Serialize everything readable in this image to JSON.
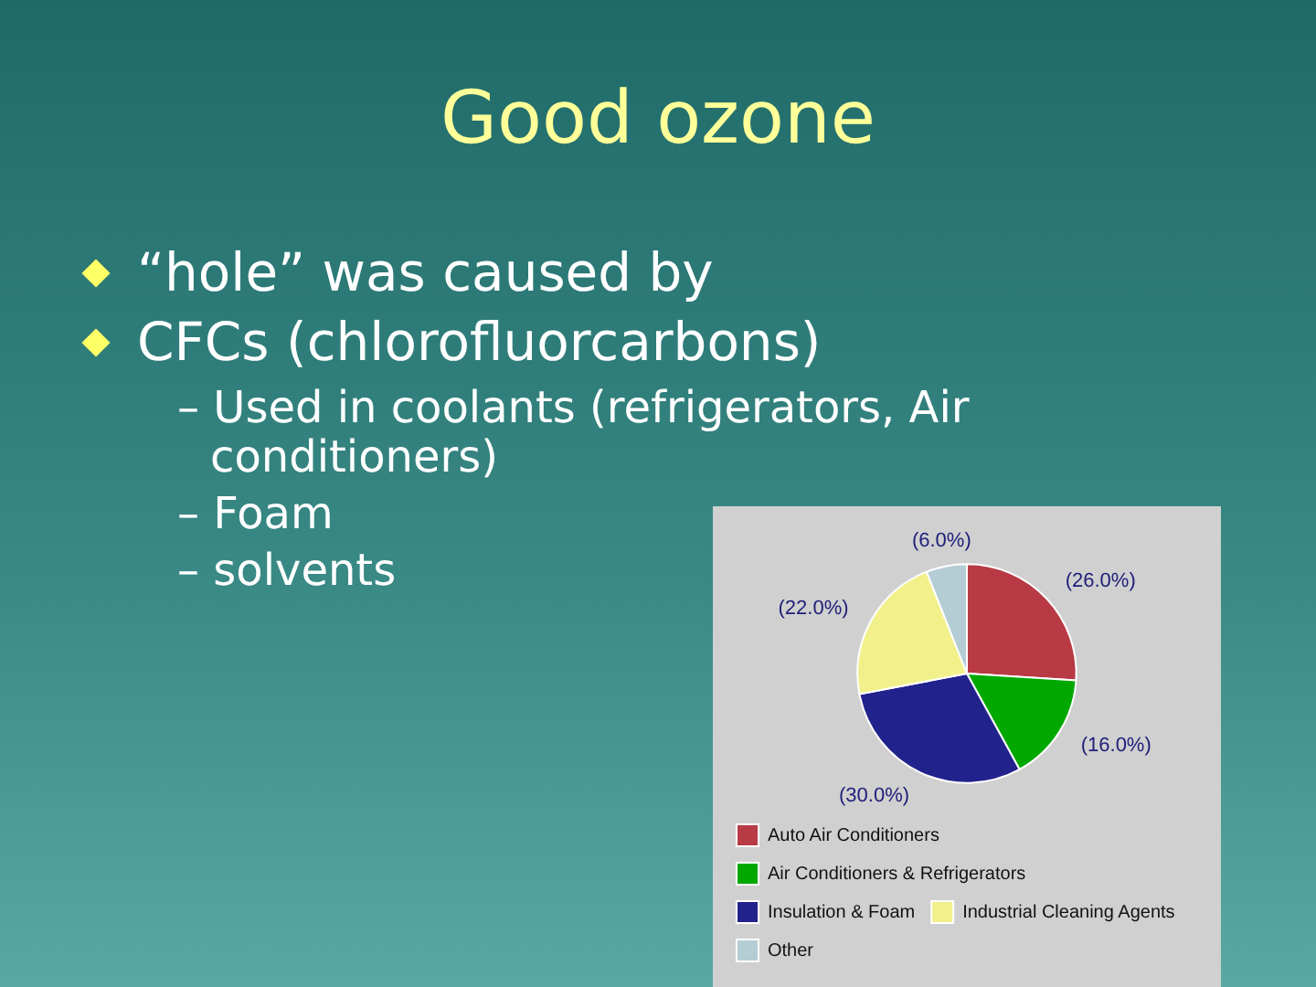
{
  "chart_data": {
    "type": "pie",
    "title": "Good ozone",
    "annotations": [
      "“hole” was caused by",
      "CFCs (chlorofluorcarbons)",
      "– Used in coolants (refrigerators, Air conditioners)",
      "– Foam",
      "– solvents"
    ],
    "categories": [
      "Auto Air Conditioners",
      "Air Conditioners & Refrigerators",
      "Insulation & Foam",
      "Industrial Cleaning Agents",
      "Other"
    ],
    "values": [
      26,
      16,
      30,
      22,
      6
    ],
    "colors": [
      "#b83a44",
      "#00a800",
      "#22228c",
      "#f2f08a",
      "#b4ccd4"
    ],
    "value_labels": [
      "(26.0%)",
      "(16.0%)",
      "(30.0%)",
      "(22.0%)",
      "(6.0%)"
    ],
    "legend": "bottom"
  }
}
